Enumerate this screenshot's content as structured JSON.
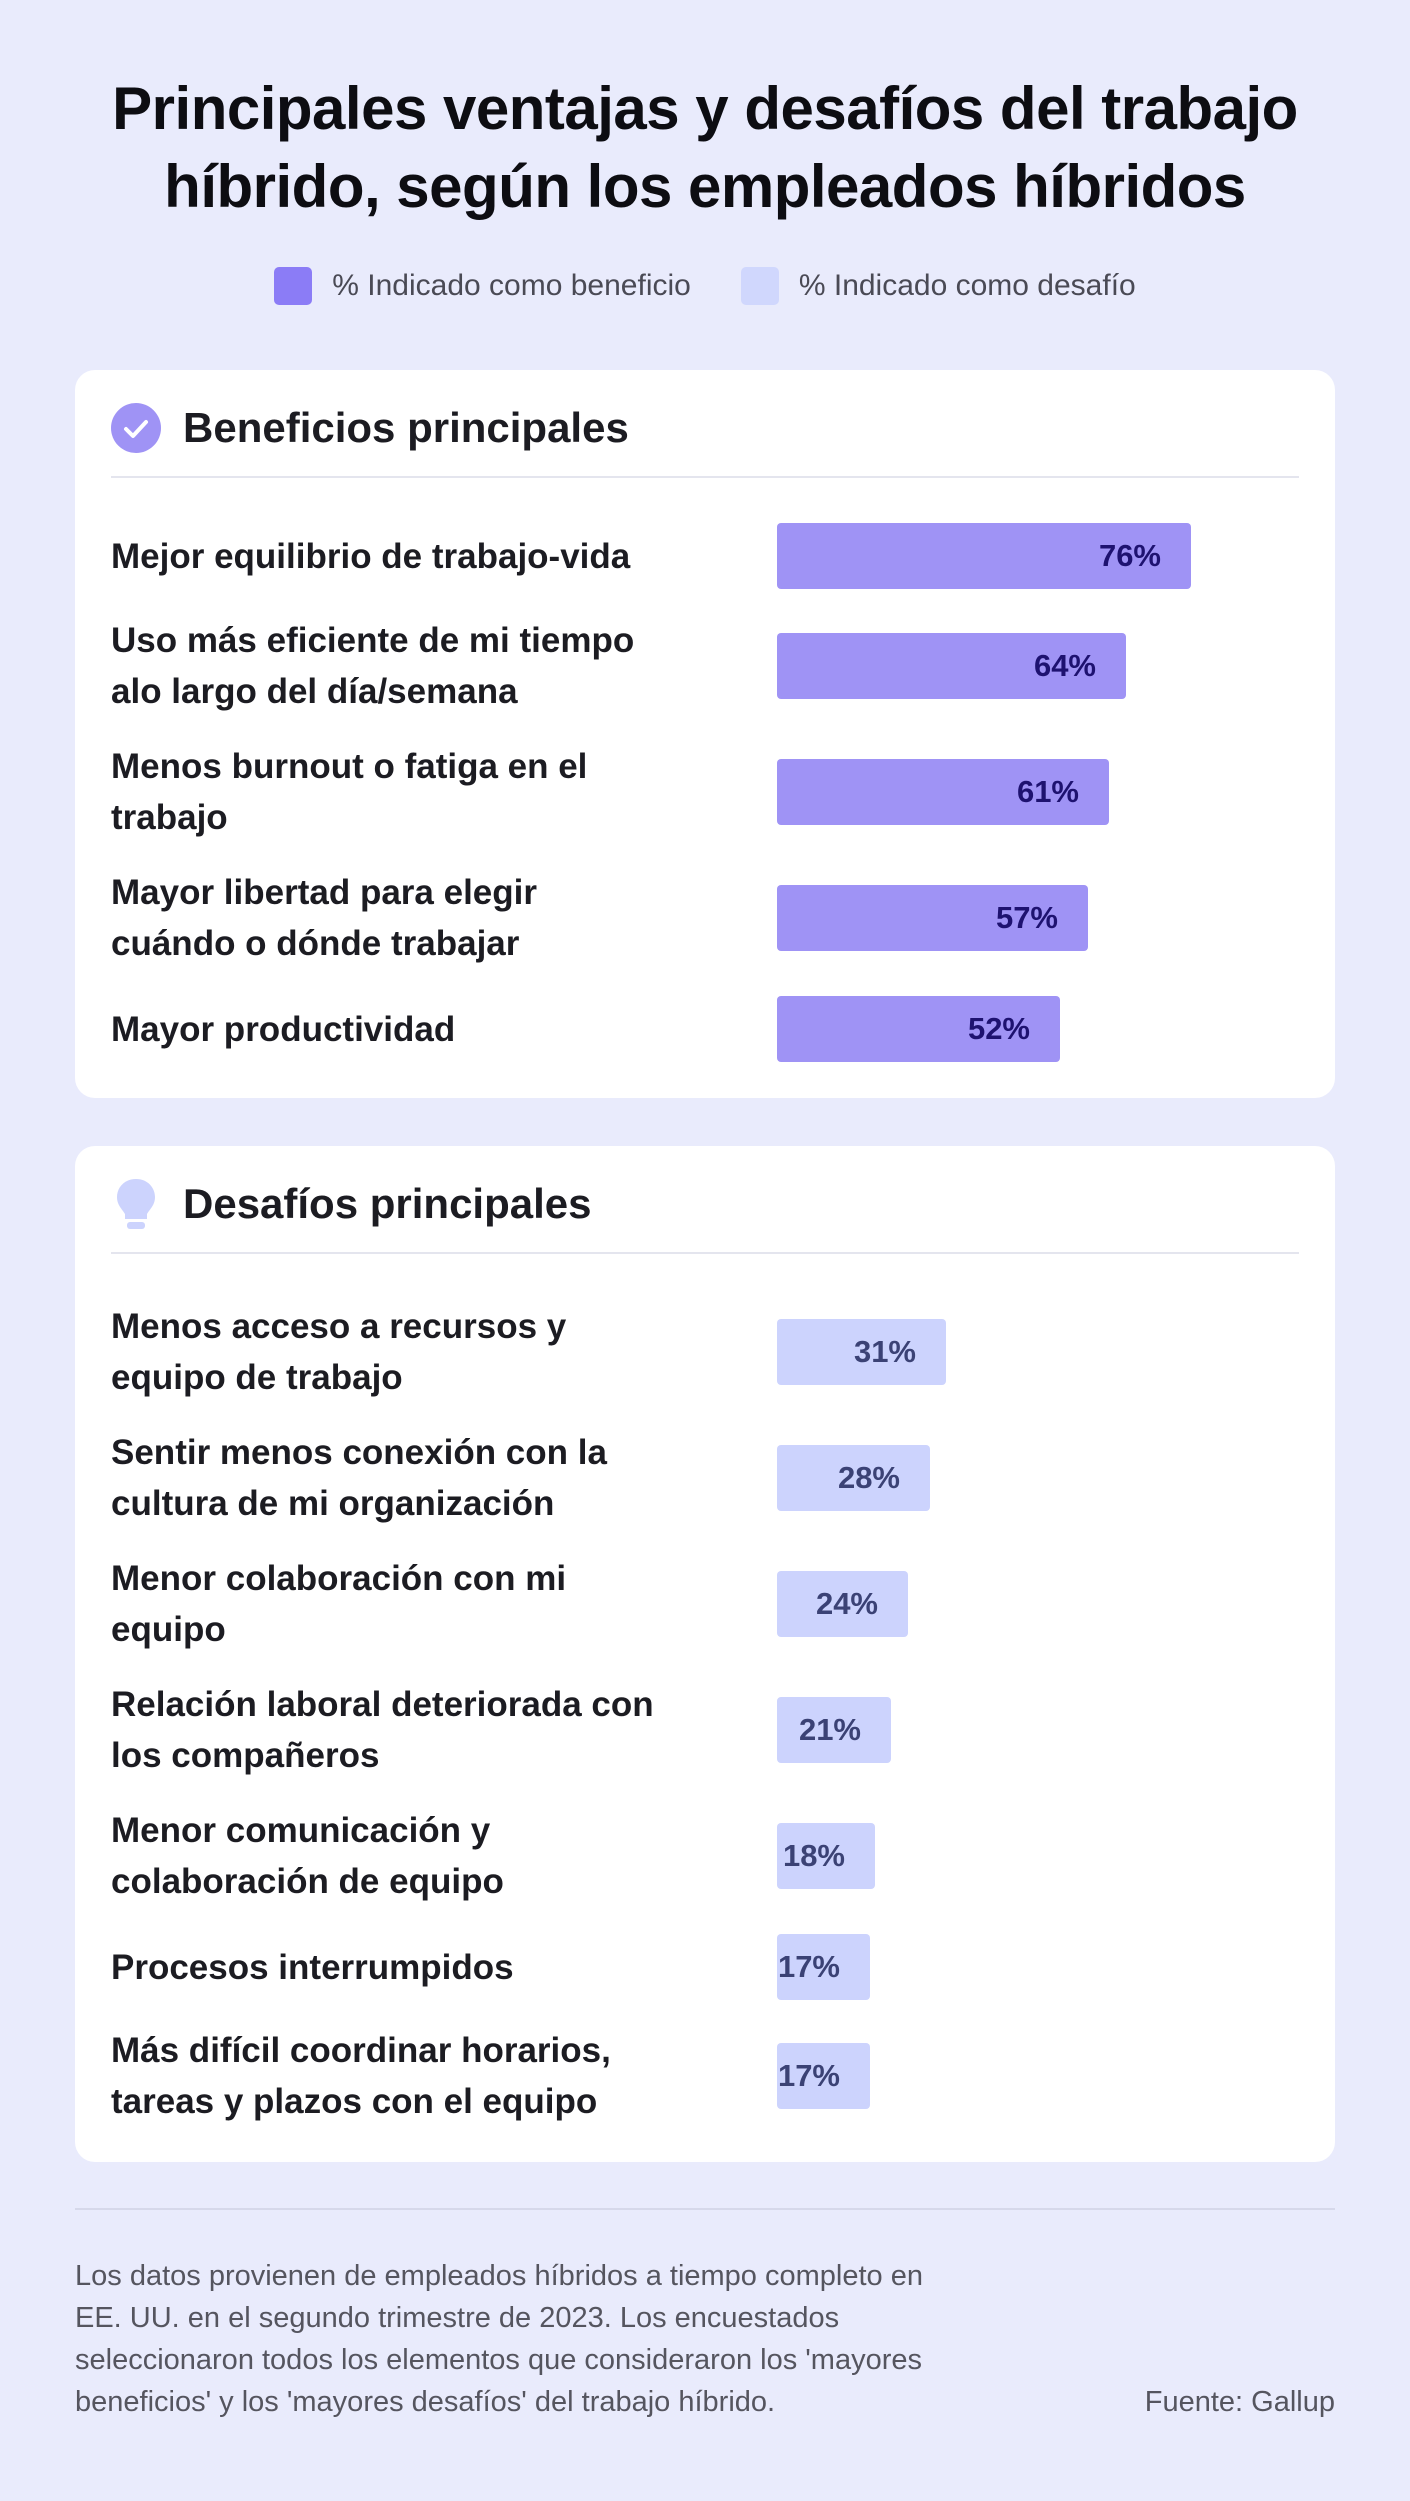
{
  "title_line1": "Principales ventajas y desafíos del trabajo",
  "title_line2": "híbrido, según los empleados híbridos",
  "legend": {
    "benefit_label": "% Indicado como beneficio",
    "challenge_label": "% Indicado como desafío"
  },
  "colors": {
    "benefit_bar": "#9f93f5",
    "challenge_bar": "#ccd3fd",
    "background": "#e9ebfc"
  },
  "chart_data": [
    {
      "type": "bar",
      "orientation": "horizontal",
      "title": "Beneficios principales",
      "unit": "%",
      "xlim": [
        0,
        100
      ],
      "categories": [
        [
          "Mejor equilibrio de trabajo-vida"
        ],
        [
          "Uso más eficiente de mi tiempo",
          "alo largo del día/semana"
        ],
        [
          "Menos burnout o fatiga en el",
          "trabajo"
        ],
        [
          "Mayor libertad para elegir",
          "cuándo o dónde trabajar"
        ],
        [
          "Mayor productividad"
        ]
      ],
      "values": [
        76,
        64,
        61,
        57,
        52
      ],
      "value_labels": [
        "76%",
        "64%",
        "61%",
        "57%",
        "52%"
      ]
    },
    {
      "type": "bar",
      "orientation": "horizontal",
      "title": "Desafíos principales",
      "unit": "%",
      "xlim": [
        0,
        100
      ],
      "categories": [
        [
          "Menos acceso a recursos y",
          "equipo de trabajo"
        ],
        [
          "Sentir menos conexión con la",
          "cultura de mi organización"
        ],
        [
          "Menor colaboración con mi",
          "equipo"
        ],
        [
          "Relación laboral deteriorada con",
          "los compañeros"
        ],
        [
          "Menor comunicación y",
          "colaboración de equipo"
        ],
        [
          "Procesos interrumpidos"
        ],
        [
          "Más difícil coordinar horarios,",
          "tareas y plazos con el equipo"
        ]
      ],
      "values": [
        31,
        28,
        24,
        21,
        18,
        17,
        17
      ],
      "value_labels": [
        "31%",
        "28%",
        "24%",
        "21%",
        "18%",
        "17%",
        "17%"
      ]
    }
  ],
  "footnote_lines": [
    "Los datos provienen de empleados híbridos a tiempo completo en",
    "EE. UU. en el segundo trimestre de 2023. Los encuestados",
    "seleccionaron todos los elementos que consideraron los 'mayores",
    "beneficios' y los 'mayores desafíos' del trabajo híbrido."
  ],
  "source": "Fuente: Gallup"
}
